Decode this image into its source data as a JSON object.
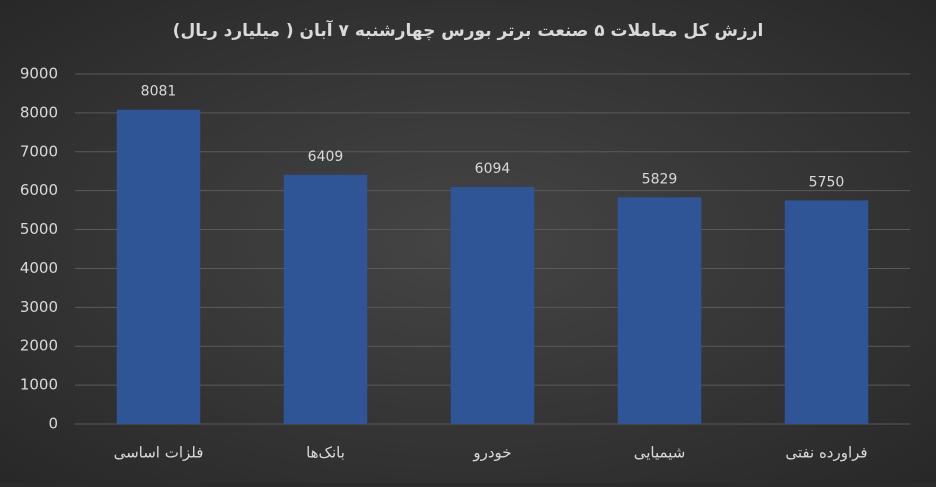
{
  "chart_data": {
    "type": "bar",
    "title": "ارزش کل معاملات ۵ صنعت برتر بورس چهارشنبه ۷ آبان ( میلیارد ریال)",
    "categories": [
      "فلزات اساسی",
      "بانک‌ها",
      "خودرو",
      "شیمیایی",
      "فراورده نفتی"
    ],
    "values": [
      8081,
      6409,
      6094,
      5829,
      5750
    ],
    "color": "#2f5597",
    "ylim": [
      0,
      9000
    ],
    "yticks": [
      0,
      1000,
      2000,
      3000,
      4000,
      5000,
      6000,
      7000,
      8000,
      9000
    ],
    "grid": true
  }
}
